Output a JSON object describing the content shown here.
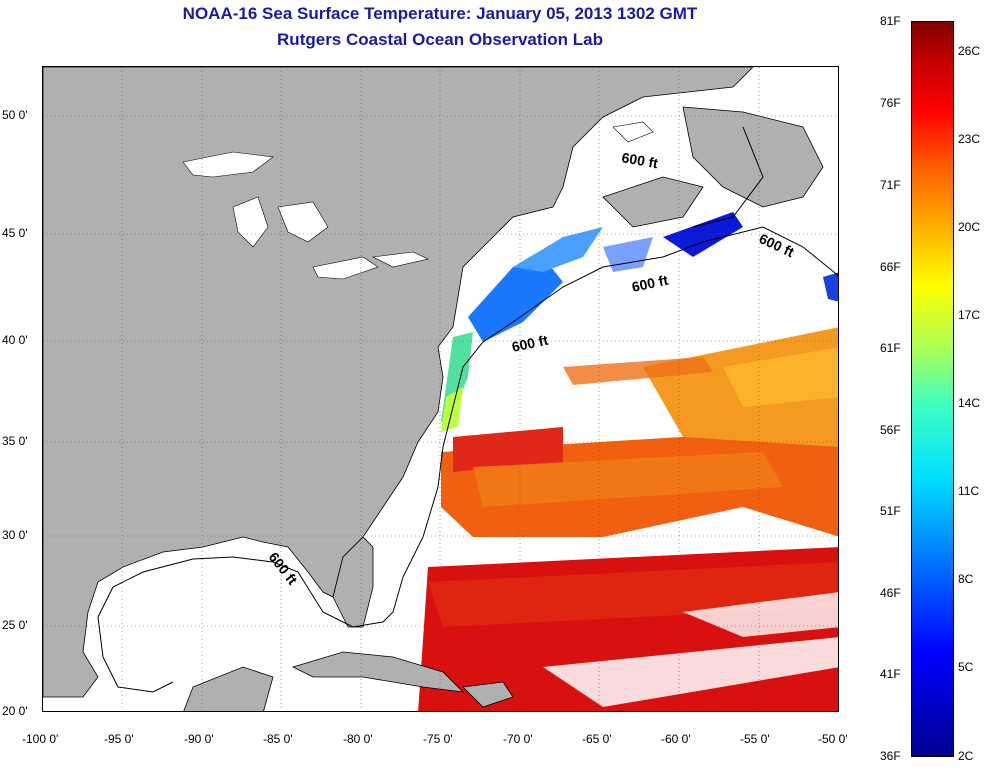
{
  "title": {
    "line1": "NOAA-16 Sea Surface Temperature:  January 05, 2013 1302 GMT",
    "line2": "Rutgers Coastal Ocean Observation Lab"
  },
  "map": {
    "lon_range": [
      -100,
      -50
    ],
    "lat_range": [
      20,
      52
    ],
    "lon_ticks": [
      "-100 0'",
      "-95 0'",
      "-90 0'",
      "-85 0'",
      "-80 0'",
      "-75 0'",
      "-70 0'",
      "-65 0'",
      "-60 0'",
      "-55 0'",
      "-50 0'"
    ],
    "lat_ticks": [
      "50 0'",
      "45 0'",
      "40 0'",
      "35 0'",
      "30 0'",
      "25 0'",
      "20 0'"
    ],
    "contour_label": "600 ft",
    "land_color": "#b0b0b0",
    "grid": "dotted"
  },
  "colorbar": {
    "fahrenheit": [
      "81F",
      "76F",
      "71F",
      "66F",
      "61F",
      "56F",
      "51F",
      "46F",
      "41F",
      "36F"
    ],
    "celsius": [
      "26C",
      "23C",
      "20C",
      "17C",
      "14C",
      "11C",
      "8C",
      "5C",
      "2C"
    ],
    "range_f": [
      36,
      81
    ],
    "range_c": [
      2,
      27
    ]
  }
}
